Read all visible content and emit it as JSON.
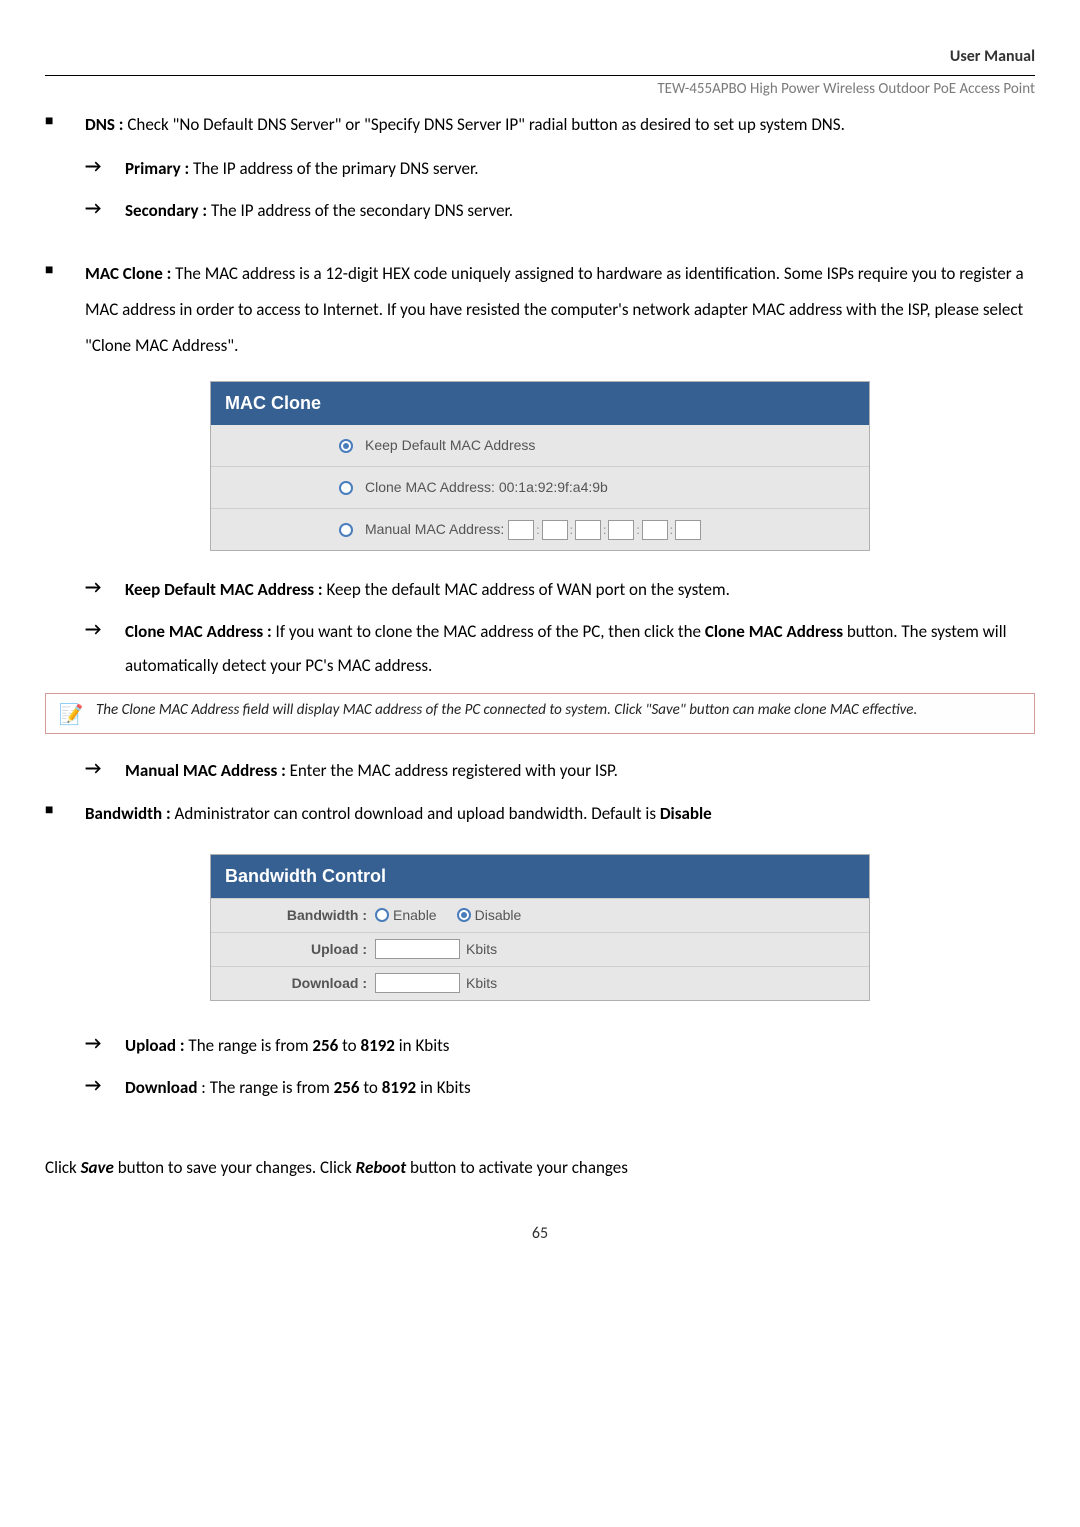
{
  "header": {
    "title": "User Manual",
    "subtitle": "TEW-455APBO High Power Wireless Outdoor PoE Access Point"
  },
  "dns": {
    "label": "DNS :",
    "desc": " Check \"No Default DNS Server\" or \"Specify DNS Server IP\" radial button as desired to set up system DNS.",
    "primary_label": "Primary :",
    "primary_desc": " The IP address of the primary DNS server.",
    "secondary_label": "Secondary :",
    "secondary_desc": " The IP address of the secondary DNS server."
  },
  "mac": {
    "label": "MAC Clone :",
    "desc": " The MAC address is a 12-digit HEX code uniquely assigned to hardware as identification. Some ISPs require you to register a MAC address in order to access to Internet. If you have resisted the computer's network adapter MAC address with the ISP, please select \"Clone MAC Address\".",
    "panel_title": "MAC Clone",
    "opt1": "Keep Default MAC Address",
    "opt2": "Clone MAC Address: 00:1a:92:9f:a4:9b",
    "opt3": "Manual MAC Address:",
    "keep_label": "Keep Default MAC Address :",
    "keep_desc": " Keep the default MAC address of WAN port on the system.",
    "clone_label": "Clone MAC Address :",
    "clone_desc_1": " If you want to clone the MAC address of the PC, then click the ",
    "clone_bold": "Clone MAC Address",
    "clone_desc_2": " button. The system will automatically detect your PC's MAC address.",
    "note": "The Clone MAC Address field will display MAC address of the PC connected to system. Click \"Save\" button can make clone MAC effective.",
    "manual_label": "Manual MAC Address :",
    "manual_desc": " Enter the MAC address registered with your ISP."
  },
  "bandwidth": {
    "label": "Bandwidth :",
    "desc_1": " Administrator can control download and upload bandwidth. Default is ",
    "default_bold": "Disable",
    "panel_title": "Bandwidth Control",
    "row_bw_label": "Bandwidth :",
    "enable": "Enable",
    "disable": "Disable",
    "upload_label": "Upload :",
    "download_label": "Download :",
    "unit": "Kbits",
    "up_label": "Upload :",
    "up_desc_1": " The range is from  ",
    "r256": "256",
    "mid": " to ",
    "r8192": "8192",
    "up_desc_2": "  in Kbits",
    "dl_label": "Download",
    "dl_desc_1": " : The range is from  "
  },
  "footer": {
    "t1": "Click ",
    "save": "Save",
    "t2": " button to save your changes. Click ",
    "reboot": "Reboot",
    "t3": " button to activate your changes"
  },
  "page": "65"
}
